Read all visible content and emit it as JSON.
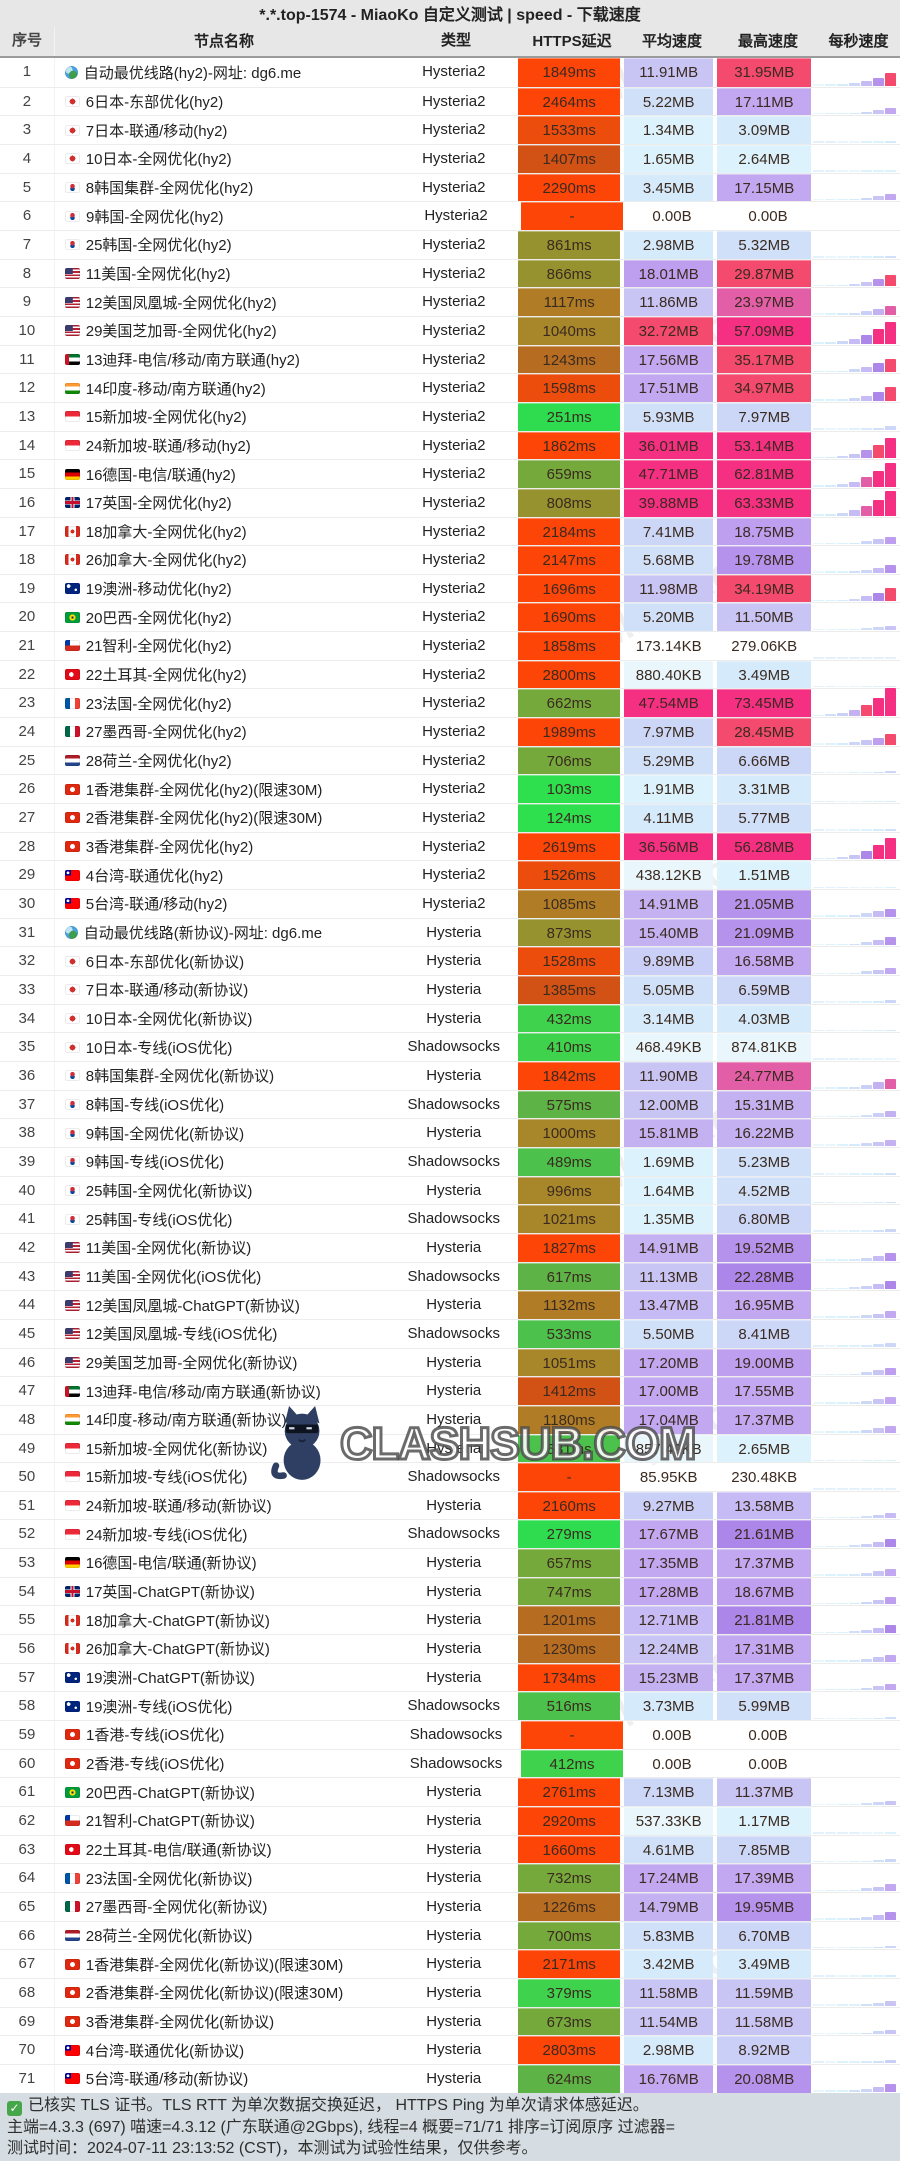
{
  "title": "*.*.top-1574 - MiaoKo 自定义测试 | speed - 下载速度",
  "header": {
    "num": "序号",
    "name": "节点名称",
    "type": "类型",
    "latency": "HTTPS延迟",
    "avg": "平均速度",
    "max": "最高速度",
    "spark": "每秒速度"
  },
  "watermark": {
    "brand": "MiaoKo",
    "site": "CLASHSUB.COM",
    "cat_icon": "cat-with-sunglasses"
  },
  "footer": {
    "check_icon": "✓",
    "line1": "已核实 TLS 证书。TLS RTT 为单次数据交换延迟， HTTPS Ping 为单次请求体感延迟。",
    "line2": "主端=4.3.3 (697) 喵速=4.3.12 (广东联通@2Gbps), 线程=4 概要=71/71 排序=订阅原序 过滤器=",
    "line3": "测试时间：2024-07-11 23:13:52 (CST)，本测试为试验性结果，仅供参考。"
  },
  "palette": {
    "latency_steps": [
      [
        160,
        "#2ee04e"
      ],
      [
        300,
        "#30dc4f"
      ],
      [
        460,
        "#3fd24d"
      ],
      [
        560,
        "#4cc14b"
      ],
      [
        640,
        "#5db346"
      ],
      [
        780,
        "#76a93c"
      ],
      [
        900,
        "#96922f"
      ],
      [
        1070,
        "#a8872a"
      ],
      [
        1190,
        "#b07d26"
      ],
      [
        1290,
        "#b76d21"
      ],
      [
        1460,
        "#d15214"
      ],
      [
        1640,
        "#ec4d0d"
      ],
      [
        999999,
        "#fd4507"
      ]
    ],
    "latency_fail": "#fd4507",
    "speed_steps": [
      [
        0.3,
        ""
      ],
      [
        1,
        "#e9f7fd"
      ],
      [
        2.8,
        "#dcf2fc"
      ],
      [
        4.3,
        "#d5eafb"
      ],
      [
        6.2,
        "#d0e0f9"
      ],
      [
        8.6,
        "#ccd7f8"
      ],
      [
        10.5,
        "#cacff7"
      ],
      [
        12.5,
        "#c8c5f5"
      ],
      [
        14.5,
        "#c6bbf4"
      ],
      [
        16.5,
        "#c4b1f2"
      ],
      [
        17.8,
        "#c1a8f0"
      ],
      [
        19.3,
        "#bd9eef"
      ],
      [
        21.3,
        "#b592ec"
      ],
      [
        23,
        "#ac86e9"
      ],
      [
        26,
        "#e25fa8"
      ],
      [
        35.5,
        "#f34a6d"
      ],
      [
        999999,
        "#f52f81"
      ]
    ],
    "spark_profile": [
      0.03,
      0.06,
      0.12,
      0.22,
      0.4,
      0.65,
      1.0
    ],
    "spark_max_mb": 65
  },
  "rows": [
    {
      "n": 1,
      "flag": "globe",
      "name": "自动最优线路(hy2)-网址: dg6.me",
      "type": "Hysteria2",
      "lat": "1849ms",
      "avg": "11.91MB",
      "max": "31.95MB"
    },
    {
      "n": 2,
      "flag": "jp",
      "name": "6日本-东部优化(hy2)",
      "type": "Hysteria2",
      "lat": "2464ms",
      "avg": "5.22MB",
      "max": "17.11MB"
    },
    {
      "n": 3,
      "flag": "jp",
      "name": "7日本-联通/移动(hy2)",
      "type": "Hysteria2",
      "lat": "1533ms",
      "avg": "1.34MB",
      "max": "3.09MB"
    },
    {
      "n": 4,
      "flag": "jp",
      "name": "10日本-全网优化(hy2)",
      "type": "Hysteria2",
      "lat": "1407ms",
      "avg": "1.65MB",
      "max": "2.64MB"
    },
    {
      "n": 5,
      "flag": "kr",
      "name": "8韩国集群-全网优化(hy2)",
      "type": "Hysteria2",
      "lat": "2290ms",
      "avg": "3.45MB",
      "max": "17.15MB"
    },
    {
      "n": 6,
      "flag": "kr",
      "name": "9韩国-全网优化(hy2)",
      "type": "Hysteria2",
      "lat": "-",
      "avg": "0.00B",
      "max": "0.00B"
    },
    {
      "n": 7,
      "flag": "kr",
      "name": "25韩国-全网优化(hy2)",
      "type": "Hysteria2",
      "lat": "861ms",
      "avg": "2.98MB",
      "max": "5.32MB"
    },
    {
      "n": 8,
      "flag": "us",
      "name": "11美国-全网优化(hy2)",
      "type": "Hysteria2",
      "lat": "866ms",
      "avg": "18.01MB",
      "max": "29.87MB"
    },
    {
      "n": 9,
      "flag": "us",
      "name": "12美国凤凰城-全网优化(hy2)",
      "type": "Hysteria2",
      "lat": "1117ms",
      "avg": "11.86MB",
      "max": "23.97MB"
    },
    {
      "n": 10,
      "flag": "us",
      "name": "29美国芝加哥-全网优化(hy2)",
      "type": "Hysteria2",
      "lat": "1040ms",
      "avg": "32.72MB",
      "max": "57.09MB"
    },
    {
      "n": 11,
      "flag": "ae",
      "name": "13迪拜-电信/移动/南方联通(hy2)",
      "type": "Hysteria2",
      "lat": "1243ms",
      "avg": "17.56MB",
      "max": "35.17MB"
    },
    {
      "n": 12,
      "flag": "in",
      "name": "14印度-移动/南方联通(hy2)",
      "type": "Hysteria2",
      "lat": "1598ms",
      "avg": "17.51MB",
      "max": "34.97MB"
    },
    {
      "n": 13,
      "flag": "sg",
      "name": "15新加坡-全网优化(hy2)",
      "type": "Hysteria2",
      "lat": "251ms",
      "avg": "5.93MB",
      "max": "7.97MB"
    },
    {
      "n": 14,
      "flag": "sg",
      "name": "24新加坡-联通/移动(hy2)",
      "type": "Hysteria2",
      "lat": "1862ms",
      "avg": "36.01MB",
      "max": "53.14MB"
    },
    {
      "n": 15,
      "flag": "de",
      "name": "16德国-电信/联通(hy2)",
      "type": "Hysteria2",
      "lat": "659ms",
      "avg": "47.71MB",
      "max": "62.81MB"
    },
    {
      "n": 16,
      "flag": "gb",
      "name": "17英国-全网优化(hy2)",
      "type": "Hysteria2",
      "lat": "808ms",
      "avg": "39.88MB",
      "max": "63.33MB"
    },
    {
      "n": 17,
      "flag": "ca",
      "name": "18加拿大-全网优化(hy2)",
      "type": "Hysteria2",
      "lat": "2184ms",
      "avg": "7.41MB",
      "max": "18.75MB"
    },
    {
      "n": 18,
      "flag": "ca",
      "name": "26加拿大-全网优化(hy2)",
      "type": "Hysteria2",
      "lat": "2147ms",
      "avg": "5.68MB",
      "max": "19.78MB"
    },
    {
      "n": 19,
      "flag": "au",
      "name": "19澳洲-移动优化(hy2)",
      "type": "Hysteria2",
      "lat": "1696ms",
      "avg": "11.98MB",
      "max": "34.19MB"
    },
    {
      "n": 20,
      "flag": "br",
      "name": "20巴西-全网优化(hy2)",
      "type": "Hysteria2",
      "lat": "1690ms",
      "avg": "5.20MB",
      "max": "11.50MB"
    },
    {
      "n": 21,
      "flag": "cl",
      "name": "21智利-全网优化(hy2)",
      "type": "Hysteria2",
      "lat": "1858ms",
      "avg": "173.14KB",
      "max": "279.06KB"
    },
    {
      "n": 22,
      "flag": "tr",
      "name": "22土耳其-全网优化(hy2)",
      "type": "Hysteria2",
      "lat": "2800ms",
      "avg": "880.40KB",
      "max": "3.49MB"
    },
    {
      "n": 23,
      "flag": "fr",
      "name": "23法国-全网优化(hy2)",
      "type": "Hysteria2",
      "lat": "662ms",
      "avg": "47.54MB",
      "max": "73.45MB"
    },
    {
      "n": 24,
      "flag": "mx",
      "name": "27墨西哥-全网优化(hy2)",
      "type": "Hysteria2",
      "lat": "1989ms",
      "avg": "7.97MB",
      "max": "28.45MB"
    },
    {
      "n": 25,
      "flag": "nl",
      "name": "28荷兰-全网优化(hy2)",
      "type": "Hysteria2",
      "lat": "706ms",
      "avg": "5.29MB",
      "max": "6.66MB"
    },
    {
      "n": 26,
      "flag": "hk",
      "name": "1香港集群-全网优化(hy2)(限速30M)",
      "type": "Hysteria2",
      "lat": "103ms",
      "avg": "1.91MB",
      "max": "3.31MB"
    },
    {
      "n": 27,
      "flag": "hk",
      "name": "2香港集群-全网优化(hy2)(限速30M)",
      "type": "Hysteria2",
      "lat": "124ms",
      "avg": "4.11MB",
      "max": "5.77MB"
    },
    {
      "n": 28,
      "flag": "hk",
      "name": "3香港集群-全网优化(hy2)",
      "type": "Hysteria2",
      "lat": "2619ms",
      "avg": "36.56MB",
      "max": "56.28MB"
    },
    {
      "n": 29,
      "flag": "tw",
      "name": "4台湾-联通优化(hy2)",
      "type": "Hysteria2",
      "lat": "1526ms",
      "avg": "438.12KB",
      "max": "1.51MB"
    },
    {
      "n": 30,
      "flag": "tw",
      "name": "5台湾-联通/移动(hy2)",
      "type": "Hysteria2",
      "lat": "1085ms",
      "avg": "14.91MB",
      "max": "21.05MB"
    },
    {
      "n": 31,
      "flag": "globe",
      "name": "自动最优线路(新协议)-网址: dg6.me",
      "type": "Hysteria",
      "lat": "873ms",
      "avg": "15.40MB",
      "max": "21.09MB"
    },
    {
      "n": 32,
      "flag": "jp",
      "name": "6日本-东部优化(新协议)",
      "type": "Hysteria",
      "lat": "1528ms",
      "avg": "9.89MB",
      "max": "16.58MB"
    },
    {
      "n": 33,
      "flag": "jp",
      "name": "7日本-联通/移动(新协议)",
      "type": "Hysteria",
      "lat": "1385ms",
      "avg": "5.05MB",
      "max": "6.59MB"
    },
    {
      "n": 34,
      "flag": "jp",
      "name": "10日本-全网优化(新协议)",
      "type": "Hysteria",
      "lat": "432ms",
      "avg": "3.14MB",
      "max": "4.03MB"
    },
    {
      "n": 35,
      "flag": "jp",
      "name": "10日本-专线(iOS优化)",
      "type": "Shadowsocks",
      "lat": "410ms",
      "avg": "468.49KB",
      "max": "874.81KB"
    },
    {
      "n": 36,
      "flag": "kr",
      "name": "8韩国集群-全网优化(新协议)",
      "type": "Hysteria",
      "lat": "1842ms",
      "avg": "11.90MB",
      "max": "24.77MB"
    },
    {
      "n": 37,
      "flag": "kr",
      "name": "8韩国-专线(iOS优化)",
      "type": "Shadowsocks",
      "lat": "575ms",
      "avg": "12.00MB",
      "max": "15.31MB"
    },
    {
      "n": 38,
      "flag": "kr",
      "name": "9韩国-全网优化(新协议)",
      "type": "Hysteria",
      "lat": "1000ms",
      "avg": "15.81MB",
      "max": "16.22MB"
    },
    {
      "n": 39,
      "flag": "kr",
      "name": "9韩国-专线(iOS优化)",
      "type": "Shadowsocks",
      "lat": "489ms",
      "avg": "1.69MB",
      "max": "5.23MB"
    },
    {
      "n": 40,
      "flag": "kr",
      "name": "25韩国-全网优化(新协议)",
      "type": "Hysteria",
      "lat": "996ms",
      "avg": "1.64MB",
      "max": "4.52MB"
    },
    {
      "n": 41,
      "flag": "kr",
      "name": "25韩国-专线(iOS优化)",
      "type": "Shadowsocks",
      "lat": "1021ms",
      "avg": "1.35MB",
      "max": "6.80MB"
    },
    {
      "n": 42,
      "flag": "us",
      "name": "11美国-全网优化(新协议)",
      "type": "Hysteria",
      "lat": "1827ms",
      "avg": "14.91MB",
      "max": "19.52MB"
    },
    {
      "n": 43,
      "flag": "us",
      "name": "11美国-全网优化(iOS优化)",
      "type": "Shadowsocks",
      "lat": "617ms",
      "avg": "11.13MB",
      "max": "22.28MB"
    },
    {
      "n": 44,
      "flag": "us",
      "name": "12美国凤凰城-ChatGPT(新协议)",
      "type": "Hysteria",
      "lat": "1132ms",
      "avg": "13.47MB",
      "max": "16.95MB"
    },
    {
      "n": 45,
      "flag": "us",
      "name": "12美国凤凰城-专线(iOS优化)",
      "type": "Shadowsocks",
      "lat": "533ms",
      "avg": "5.50MB",
      "max": "8.41MB"
    },
    {
      "n": 46,
      "flag": "us",
      "name": "29美国芝加哥-全网优化(新协议)",
      "type": "Hysteria",
      "lat": "1051ms",
      "avg": "17.20MB",
      "max": "19.00MB"
    },
    {
      "n": 47,
      "flag": "ae",
      "name": "13迪拜-电信/移动/南方联通(新协议)",
      "type": "Hysteria",
      "lat": "1412ms",
      "avg": "17.00MB",
      "max": "17.55MB"
    },
    {
      "n": 48,
      "flag": "in",
      "name": "14印度-移动/南方联通(新协议)",
      "type": "Hysteria",
      "lat": "1180ms",
      "avg": "17.04MB",
      "max": "17.37MB"
    },
    {
      "n": 49,
      "flag": "sg",
      "name": "15新加坡-全网优化(新协议)",
      "type": "Hysteria",
      "lat": "531ms",
      "avg": "857.49KB",
      "max": "2.65MB"
    },
    {
      "n": 50,
      "flag": "sg",
      "name": "15新加坡-专线(iOS优化)",
      "type": "Shadowsocks",
      "lat": "-",
      "avg": "85.95KB",
      "max": "230.48KB"
    },
    {
      "n": 51,
      "flag": "sg",
      "name": "24新加坡-联通/移动(新协议)",
      "type": "Hysteria",
      "lat": "2160ms",
      "avg": "9.27MB",
      "max": "13.58MB"
    },
    {
      "n": 52,
      "flag": "sg",
      "name": "24新加坡-专线(iOS优化)",
      "type": "Shadowsocks",
      "lat": "279ms",
      "avg": "17.67MB",
      "max": "21.61MB"
    },
    {
      "n": 53,
      "flag": "de",
      "name": "16德国-电信/联通(新协议)",
      "type": "Hysteria",
      "lat": "657ms",
      "avg": "17.35MB",
      "max": "17.37MB"
    },
    {
      "n": 54,
      "flag": "gb",
      "name": "17英国-ChatGPT(新协议)",
      "type": "Hysteria",
      "lat": "747ms",
      "avg": "17.28MB",
      "max": "18.67MB"
    },
    {
      "n": 55,
      "flag": "ca",
      "name": "18加拿大-ChatGPT(新协议)",
      "type": "Hysteria",
      "lat": "1201ms",
      "avg": "12.71MB",
      "max": "21.81MB"
    },
    {
      "n": 56,
      "flag": "ca",
      "name": "26加拿大-ChatGPT(新协议)",
      "type": "Hysteria",
      "lat": "1230ms",
      "avg": "12.24MB",
      "max": "17.31MB"
    },
    {
      "n": 57,
      "flag": "au",
      "name": "19澳洲-ChatGPT(新协议)",
      "type": "Hysteria",
      "lat": "1734ms",
      "avg": "15.23MB",
      "max": "17.37MB"
    },
    {
      "n": 58,
      "flag": "au",
      "name": "19澳洲-专线(iOS优化)",
      "type": "Shadowsocks",
      "lat": "516ms",
      "avg": "3.73MB",
      "max": "5.99MB"
    },
    {
      "n": 59,
      "flag": "hk",
      "name": "1香港-专线(iOS优化)",
      "type": "Shadowsocks",
      "lat": "-",
      "avg": "0.00B",
      "max": "0.00B"
    },
    {
      "n": 60,
      "flag": "hk",
      "name": "2香港-专线(iOS优化)",
      "type": "Shadowsocks",
      "lat": "412ms",
      "avg": "0.00B",
      "max": "0.00B"
    },
    {
      "n": 61,
      "flag": "br",
      "name": "20巴西-ChatGPT(新协议)",
      "type": "Hysteria",
      "lat": "2761ms",
      "avg": "7.13MB",
      "max": "11.37MB"
    },
    {
      "n": 62,
      "flag": "cl",
      "name": "21智利-ChatGPT(新协议)",
      "type": "Hysteria",
      "lat": "2920ms",
      "avg": "537.33KB",
      "max": "1.17MB"
    },
    {
      "n": 63,
      "flag": "tr",
      "name": "22土耳其-电信/联通(新协议)",
      "type": "Hysteria",
      "lat": "1660ms",
      "avg": "4.61MB",
      "max": "7.85MB"
    },
    {
      "n": 64,
      "flag": "fr",
      "name": "23法国-全网优化(新协议)",
      "type": "Hysteria",
      "lat": "732ms",
      "avg": "17.24MB",
      "max": "17.39MB"
    },
    {
      "n": 65,
      "flag": "mx",
      "name": "27墨西哥-全网优化(新协议)",
      "type": "Hysteria",
      "lat": "1226ms",
      "avg": "14.79MB",
      "max": "19.95MB"
    },
    {
      "n": 66,
      "flag": "nl",
      "name": "28荷兰-全网优化(新协议)",
      "type": "Hysteria",
      "lat": "700ms",
      "avg": "5.83MB",
      "max": "6.70MB"
    },
    {
      "n": 67,
      "flag": "hk",
      "name": "1香港集群-全网优化(新协议)(限速30M)",
      "type": "Hysteria",
      "lat": "2171ms",
      "avg": "3.42MB",
      "max": "3.49MB"
    },
    {
      "n": 68,
      "flag": "hk",
      "name": "2香港集群-全网优化(新协议)(限速30M)",
      "type": "Hysteria",
      "lat": "379ms",
      "avg": "11.58MB",
      "max": "11.59MB"
    },
    {
      "n": 69,
      "flag": "hk",
      "name": "3香港集群-全网优化(新协议)",
      "type": "Hysteria",
      "lat": "673ms",
      "avg": "11.54MB",
      "max": "11.58MB"
    },
    {
      "n": 70,
      "flag": "tw",
      "name": "4台湾-联通优化(新协议)",
      "type": "Hysteria",
      "lat": "2803ms",
      "avg": "2.98MB",
      "max": "8.92MB"
    },
    {
      "n": 71,
      "flag": "tw",
      "name": "5台湾-联通/移动(新协议)",
      "type": "Hysteria",
      "lat": "624ms",
      "avg": "16.76MB",
      "max": "20.08MB"
    }
  ]
}
